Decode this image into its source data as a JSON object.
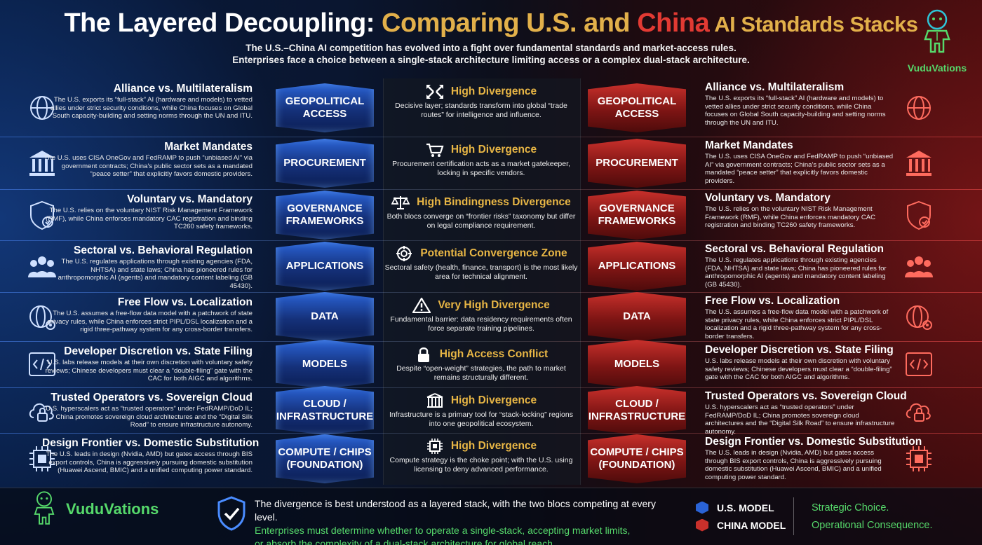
{
  "header": {
    "title_part1": "The Layered Decoupling: ",
    "title_part2": "Comparing U.S. and ",
    "title_part3": "China",
    "title_part4": " AI Standards Stacks",
    "subtitle_line1": "The U.S.–China AI competition has evolved into a fight over fundamental standards and market-access rules.",
    "subtitle_line2": "Enterprises face a choice between a single-stack architecture limiting access or a complex dual-stack architecture."
  },
  "logo": {
    "name": "VuduVations"
  },
  "layers": [
    {
      "label_line1": "GEOPOLITICAL",
      "label_line2": "ACCESS",
      "title": "Alliance vs. Multilateralism",
      "desc": "The U.S. exports its “full-stack” AI (hardware and models) to vetted allies under strict security conditions, while China focuses on Global South capacity-building and setting norms through the UN and ITU.",
      "mid_title": "High Divergence",
      "mid_desc": "Decisive layer; standards transform into global “trade routes” for intelligence and influence.",
      "side_icon": "globe-network-icon",
      "mid_icon": "arrows-diverge-icon"
    },
    {
      "label_line1": "PROCUREMENT",
      "label_line2": "",
      "title": "Market Mandates",
      "desc": "The U.S. uses CISA OneGov and FedRAMP to push “unbiased AI” via government contracts; China's public sector sets as a mandated “peace setter” that explicitly favors domestic providers.",
      "mid_title": "High Divergence",
      "mid_desc": "Procurement certification acts as a market gatekeeper, locking in specific vendors.",
      "side_icon": "government-building-icon",
      "mid_icon": "shopping-cart-icon"
    },
    {
      "label_line1": "GOVERNANCE",
      "label_line2": "FRAMEWORKS",
      "title": "Voluntary vs. Mandatory",
      "desc": "The U.S. relies on the voluntary NIST Risk Management Framework (RMF), while China enforces mandatory CAC registration and binding TC260 safety frameworks.",
      "mid_title": "High Bindingness Divergence",
      "mid_desc": "Both blocs converge on “frontier risks” taxonomy but differ on legal compliance requirement.",
      "side_icon": "shield-check-icon",
      "mid_icon": "scales-icon"
    },
    {
      "label_line1": "APPLICATIONS",
      "label_line2": "",
      "title": "Sectoral vs. Behavioral Regulation",
      "desc": "The U.S. regulates applications through existing agencies (FDA, NHTSA) and state laws; China has pioneered rules for anthropomorphic AI (agents) and mandatory content labeling (GB 45430).",
      "mid_title": "Potential Convergence Zone",
      "mid_desc": "Sectoral safety (health, finance, transport) is the most likely area for technical alignment.",
      "side_icon": "people-group-icon",
      "mid_icon": "target-icon"
    },
    {
      "label_line1": "DATA",
      "label_line2": "",
      "title": "Free Flow vs. Localization",
      "desc": "The U.S. assumes a free-flow data model with a patchwork of state privacy rules, while China enforces strict PIPL/DSL localization and a rigid three-pathway system for any cross-border transfers.",
      "mid_title": "Very High Divergence",
      "mid_desc": "Fundamental barrier: data residency requirements often force separate training pipelines.",
      "side_icon": "globe-data-icon",
      "mid_icon": "warning-icon"
    },
    {
      "label_line1": "MODELS",
      "label_line2": "",
      "title": "Developer Discretion vs. State Filing",
      "desc": "U.S. labs release models at their own discretion with voluntary safety reviews; Chinese developers must clear a “double-filing” gate with the CAC for both AIGC and algorithms.",
      "mid_title": "High Access Conflict",
      "mid_desc": "Despite “open-weight” strategies, the path to market remains structurally different.",
      "side_icon": "code-icon",
      "mid_icon": "lock-icon"
    },
    {
      "label_line1": "CLOUD /",
      "label_line2": "INFRASTRUCTURE",
      "title": "Trusted Operators vs. Sovereign Cloud",
      "desc": "U.S. hyperscalers act as “trusted operators” under FedRAMP/DoD IL; China promotes sovereign cloud architectures and the “Digital Silk Road” to ensure infrastructure autonomy.",
      "mid_title": "High Divergence",
      "mid_desc": "Infrastructure is a primary tool for “stack-locking” regions into one geopolitical ecosystem.",
      "side_icon": "cloud-lock-icon",
      "mid_icon": "server-rack-icon"
    },
    {
      "label_line1": "COMPUTE / CHIPS",
      "label_line2": "(FOUNDATION)",
      "title": "Design Frontier vs. Domestic Substitution",
      "desc": "The U.S. leads in design (Nvidia, AMD) but gates access through BIS export controls, China is aggressively pursuing domestic substitution (Huawei Ascend, BMIC) and a unified computing power standard.",
      "mid_title": "High Divergence",
      "mid_desc": "Compute strategy is the choke point; with the U.S. using licensing to deny advanced performance.",
      "side_icon": "chip-icon",
      "mid_icon": "chip-icon"
    }
  ],
  "footer": {
    "line1": "The divergence is best understood as a layered stack, with the two blocs competing at every level.",
    "line2": "Enterprises must determine whether to operate a single-stack, accepting market limits,",
    "line3": "or absorb the complexity of a dual-stack architecture for global reach.",
    "legend_us": "U.S. MODEL",
    "legend_cn": "CHINA MODEL",
    "strategic1": "Strategic Choice.",
    "strategic2": "Operational Consequence."
  },
  "colors": {
    "us": "#1f5fd6",
    "china": "#c8302b",
    "accent_gold": "#e2b04a",
    "accent_green": "#56d96b"
  }
}
